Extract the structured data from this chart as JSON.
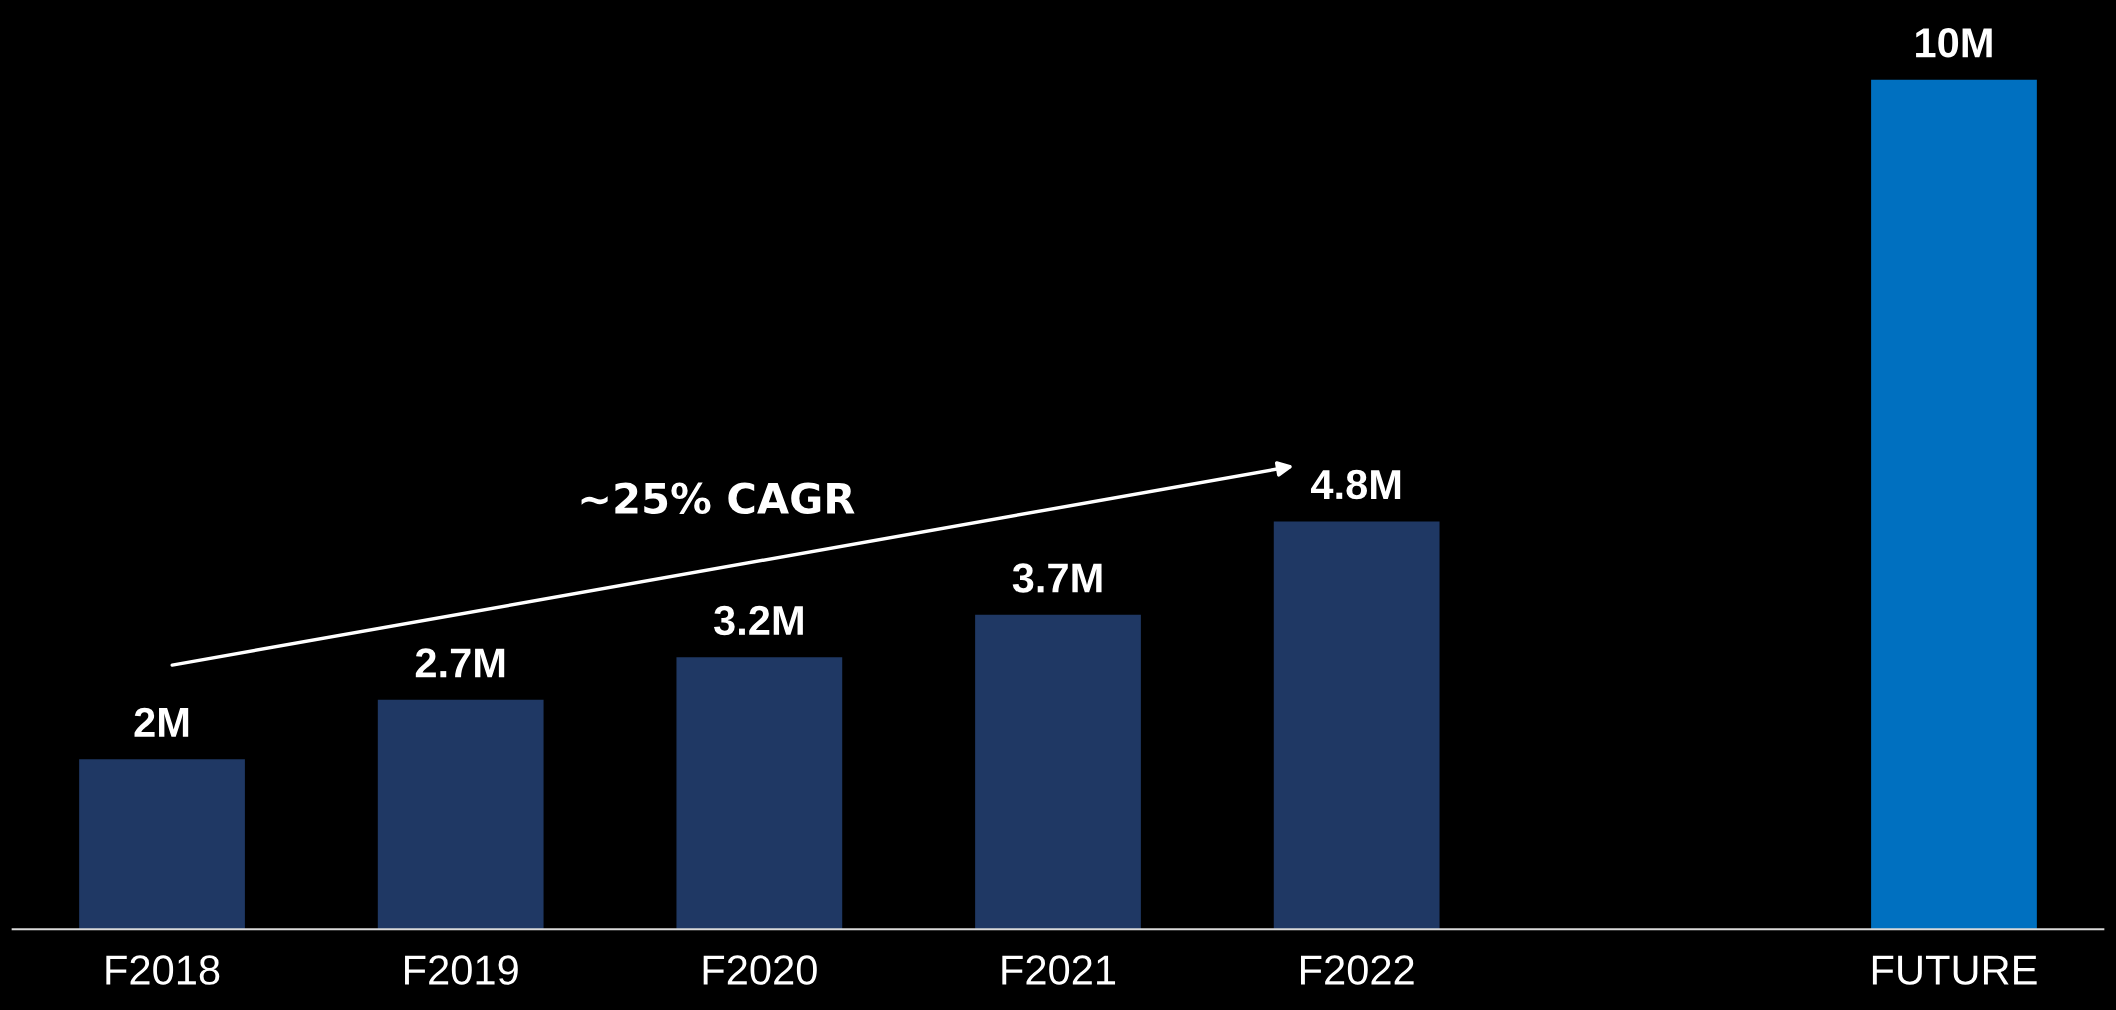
{
  "chart_data": {
    "type": "bar",
    "categories": [
      "F2018",
      "F2019",
      "F2020",
      "F2021",
      "F2022",
      null,
      "FUTURE"
    ],
    "values": [
      2,
      2.7,
      3.2,
      3.7,
      4.8,
      null,
      10
    ],
    "colors": [
      "#1f3864",
      "#1f3864",
      "#1f3864",
      "#1f3864",
      "#1f3864",
      "#1f3864",
      "#0070c0"
    ],
    "value_labels": [
      "2M",
      "2.7M",
      "3.2M",
      "3.7M",
      "4.8M",
      null,
      "10M"
    ],
    "annotations": [
      "∼25% CAGR"
    ],
    "grid": false,
    "legend": false
  }
}
